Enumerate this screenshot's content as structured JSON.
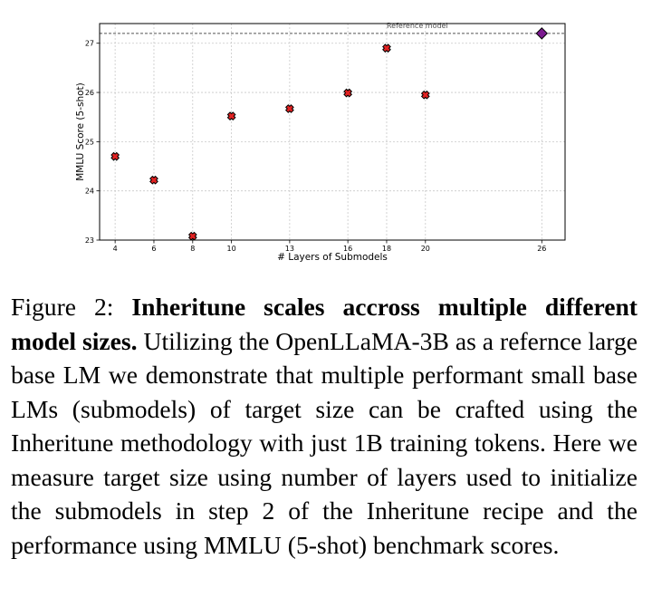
{
  "chart_data": {
    "type": "scatter",
    "title": "",
    "xlabel": "# Layers of Submodels",
    "ylabel": "MMLU Score (5-shot)",
    "x_ticks": [
      4,
      6,
      8,
      10,
      13,
      16,
      18,
      20,
      26
    ],
    "y_ticks": [
      23,
      24,
      25,
      26,
      27
    ],
    "xlim": [
      3.2,
      27.2
    ],
    "ylim": [
      23,
      27.4
    ],
    "grid": true,
    "series": [
      {
        "marker": "x",
        "color": "#e32222",
        "points": [
          {
            "x": 4,
            "y": 24.7
          },
          {
            "x": 6,
            "y": 24.22
          },
          {
            "x": 8,
            "y": 23.08
          },
          {
            "x": 10,
            "y": 25.52
          },
          {
            "x": 13,
            "y": 25.67
          },
          {
            "x": 16,
            "y": 25.99
          },
          {
            "x": 18,
            "y": 26.9
          },
          {
            "x": 20,
            "y": 25.95
          }
        ]
      },
      {
        "marker": "diamond",
        "color": "#7b1a8f",
        "points": [
          {
            "x": 26,
            "y": 27.2
          }
        ]
      }
    ],
    "reference_line": {
      "y": 27.2,
      "label": "Reference model"
    }
  },
  "caption": {
    "prefix": "Figure 2: ",
    "bold": "Inheritune scales accross multiple different model sizes.",
    "body": " Utilizing the OpenLLaMA-3B as a refernce large base LM we demonstrate that multiple performant small base LMs (submodels) of target size can be crafted using the Inheritune methodology with just 1B training tokens. Here we measure target size using number of layers used to initialize the submodels in step 2 of the Inheritune recipe and the performance using MMLU (5-shot) benchmark scores."
  }
}
